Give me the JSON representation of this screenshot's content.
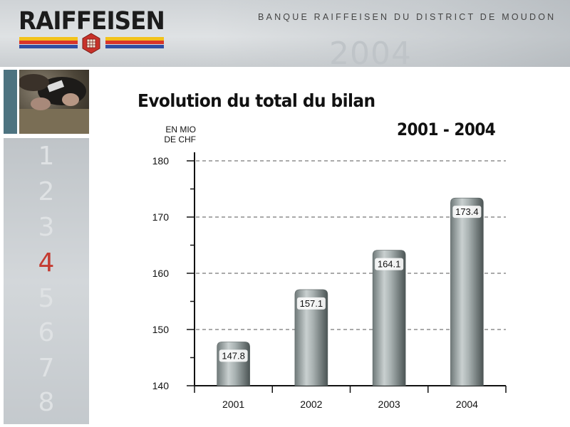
{
  "header": {
    "logo_text": "RAIFFEISEN",
    "bank_name": "BANQUE RAIFFEISEN DU DISTRICT DE MOUDON",
    "watermark": "2004"
  },
  "sidebar": {
    "numbers": [
      "1",
      "2",
      "3",
      "4",
      "5",
      "6",
      "7",
      "8"
    ],
    "active": "4",
    "active_color": "#c43b31"
  },
  "title": "Evolution du total du bilan",
  "subtitle": "2001 - 2004",
  "unit_lines": [
    "EN MIO",
    "DE CHF"
  ],
  "chart_data": {
    "type": "bar",
    "categories": [
      "2001",
      "2002",
      "2003",
      "2004"
    ],
    "values": [
      147.8,
      157.1,
      164.1,
      173.4
    ],
    "data_labels": [
      "147.8",
      "157.1",
      "164.1",
      "173.4"
    ],
    "title": "Evolution du total du bilan",
    "subtitle": "2001 - 2004",
    "ylabel": "EN MIO DE CHF",
    "xlabel": "",
    "ylim": [
      140,
      180
    ],
    "yticks": [
      140,
      150,
      160,
      170,
      180
    ],
    "grid": true,
    "legend": "none",
    "bar_color": "#8f9a9a"
  }
}
